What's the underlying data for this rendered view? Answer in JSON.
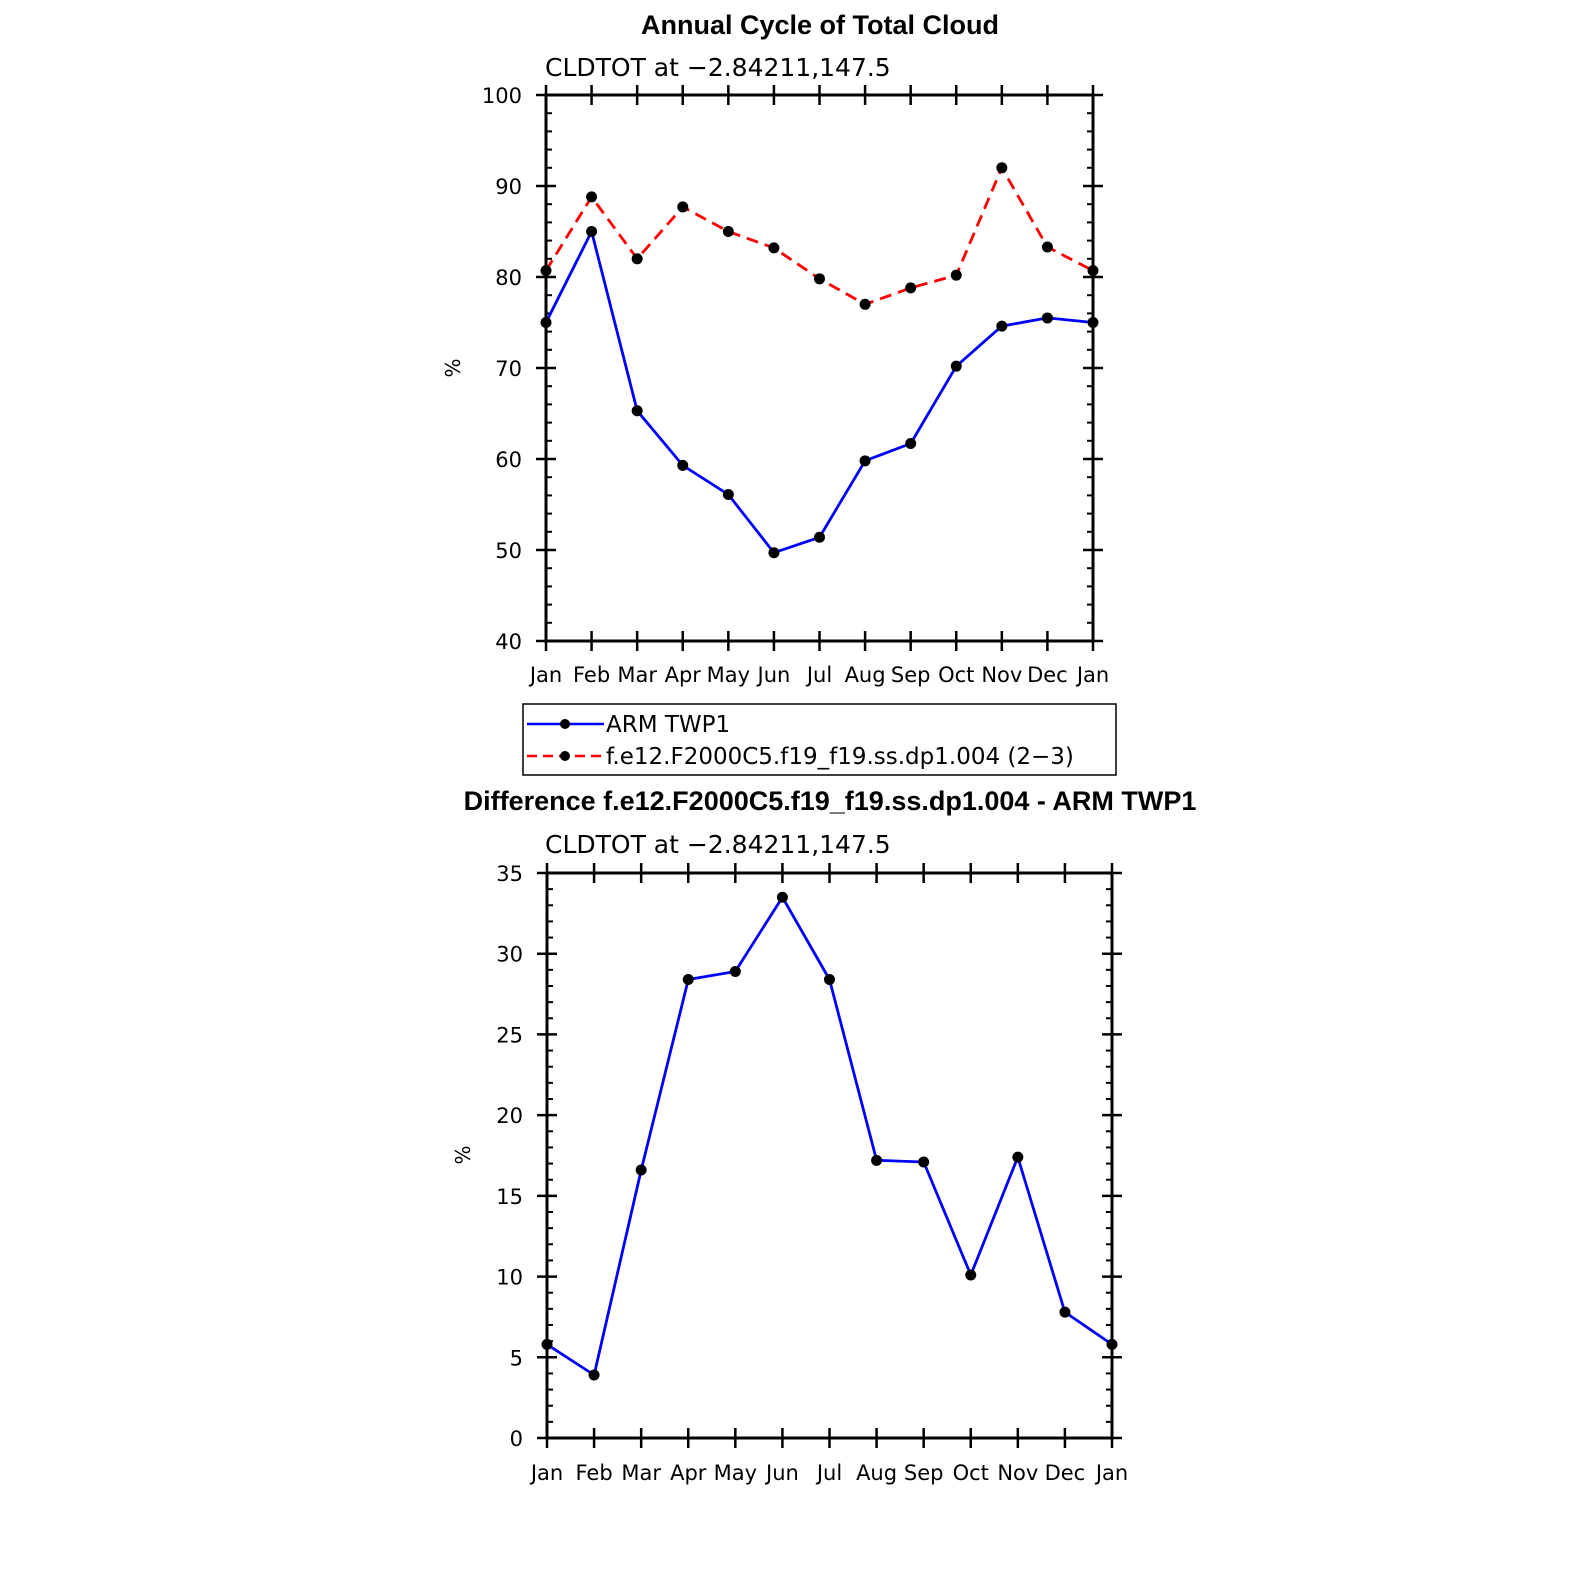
{
  "chart_data": [
    {
      "type": "line",
      "title": "Annual Cycle of Total Cloud",
      "subtitle": "CLDTOT at −2.84211,147.5",
      "xlabel": "",
      "ylabel": "%",
      "categories": [
        "Jan",
        "Feb",
        "Mar",
        "Apr",
        "May",
        "Jun",
        "Jul",
        "Aug",
        "Sep",
        "Oct",
        "Nov",
        "Dec",
        "Jan"
      ],
      "ylim": [
        40,
        100
      ],
      "yticks": [
        40,
        50,
        60,
        70,
        80,
        90,
        100
      ],
      "series": [
        {
          "name": "ARM TWP1",
          "color": "#0000ff",
          "dashed": false,
          "values": [
            75.0,
            85.0,
            65.3,
            59.3,
            56.1,
            49.7,
            51.4,
            59.8,
            61.7,
            70.2,
            74.6,
            75.5,
            75.0
          ]
        },
        {
          "name": "f.e12.F2000C5.f19_f19.ss.dp1.004 (2−3)",
          "color": "#ff0000",
          "dashed": true,
          "values": [
            80.7,
            88.8,
            82.0,
            87.7,
            85.0,
            83.2,
            79.8,
            77.0,
            78.8,
            80.2,
            92.0,
            83.3,
            80.7
          ]
        }
      ],
      "legend": "bottom"
    },
    {
      "type": "line",
      "title": "Difference f.e12.F2000C5.f19_f19.ss.dp1.004 - ARM TWP1",
      "subtitle": "CLDTOT at −2.84211,147.5",
      "xlabel": "",
      "ylabel": "%",
      "categories": [
        "Jan",
        "Feb",
        "Mar",
        "Apr",
        "May",
        "Jun",
        "Jul",
        "Aug",
        "Sep",
        "Oct",
        "Nov",
        "Dec",
        "Jan"
      ],
      "ylim": [
        0,
        35
      ],
      "yticks": [
        0,
        5,
        10,
        15,
        20,
        25,
        30,
        35
      ],
      "series": [
        {
          "name": "Difference",
          "color": "#0000ff",
          "dashed": false,
          "values": [
            5.8,
            3.9,
            16.6,
            28.4,
            28.9,
            33.5,
            28.4,
            17.2,
            17.1,
            10.1,
            17.4,
            7.8,
            5.8
          ]
        }
      ]
    }
  ]
}
